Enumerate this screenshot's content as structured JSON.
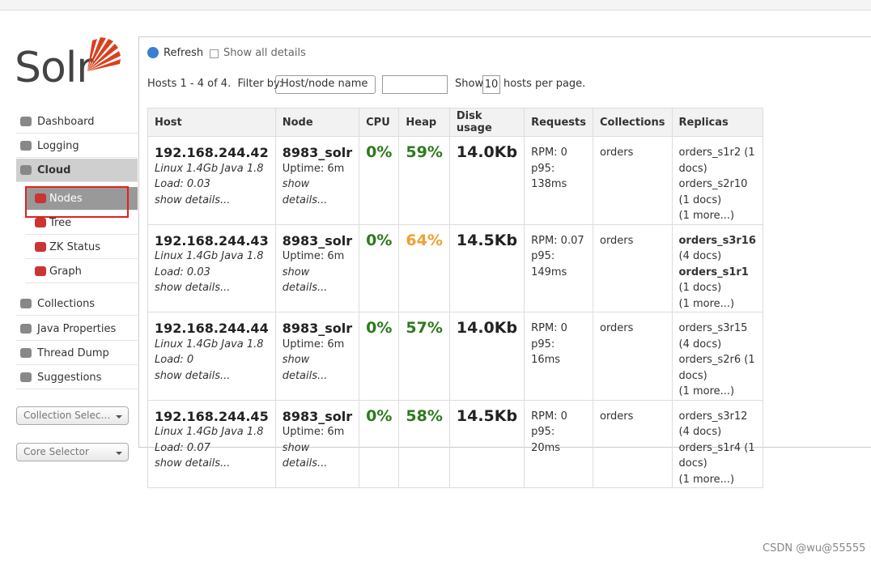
{
  "logo": "Solr",
  "nav": [
    {
      "label": "Dashboard"
    },
    {
      "label": "Logging"
    },
    {
      "label": "Cloud",
      "active": true
    },
    {
      "label": "Nodes",
      "sub": true,
      "selected": true
    },
    {
      "label": "Tree",
      "sub": true
    },
    {
      "label": "ZK Status",
      "sub": true
    },
    {
      "label": "Graph",
      "sub": true
    },
    {
      "label": "Collections"
    },
    {
      "label": "Java Properties"
    },
    {
      "label": "Thread Dump"
    },
    {
      "label": "Suggestions"
    }
  ],
  "selectors": [
    "Collection Selec…",
    "Core Selector"
  ],
  "toolbar": {
    "refresh": "Refresh",
    "show_all": "Show all details"
  },
  "filter": {
    "summary": "Hosts 1 - 4 of 4.",
    "filter_by": "Filter by:",
    "select": "Host/node name",
    "show": "Show",
    "per_page": "10",
    "suffix": "hosts per page."
  },
  "table": {
    "headers": [
      "Host",
      "Node",
      "CPU",
      "Heap",
      "Disk usage",
      "Requests",
      "Collections",
      "Replicas"
    ],
    "rows": [
      {
        "host": "192.168.244.42",
        "os": "Linux 1.4Gb Java 1.8",
        "load": "Load: 0.03",
        "host_details": "show details...",
        "node": "8983_solr",
        "uptime": "Uptime: 6m",
        "node_details": "show details...",
        "cpu": "0%",
        "heap": "59%",
        "heap_color": "#2d7a1f",
        "disk": "14.0Kb",
        "rpm": "RPM: 0",
        "p95": "p95: 138ms",
        "collections": "orders",
        "replicas": [
          {
            "name": "orders_s1r2",
            "docs": "(1 docs)",
            "bold": false
          },
          {
            "name": "orders_s2r10",
            "docs": "(1 docs)",
            "bold": false
          }
        ],
        "more": "(1 more...)"
      },
      {
        "host": "192.168.244.43",
        "os": "Linux 1.4Gb Java 1.8",
        "load": "Load: 0.03",
        "host_details": "show details...",
        "node": "8983_solr",
        "uptime": "Uptime: 6m",
        "node_details": "show details...",
        "cpu": "0%",
        "heap": "64%",
        "heap_color": "#f0a030",
        "disk": "14.5Kb",
        "rpm": "RPM: 0.07",
        "p95": "p95: 149ms",
        "collections": "orders",
        "replicas": [
          {
            "name": "orders_s3r16",
            "docs": "(4 docs)",
            "bold": true
          },
          {
            "name": "orders_s1r1",
            "docs": "(1 docs)",
            "bold": true
          }
        ],
        "more": "(1 more...)"
      },
      {
        "host": "192.168.244.44",
        "os": "Linux 1.4Gb Java 1.8",
        "load": "Load: 0",
        "host_details": "show details...",
        "node": "8983_solr",
        "uptime": "Uptime: 6m",
        "node_details": "show details...",
        "cpu": "0%",
        "heap": "57%",
        "heap_color": "#2d7a1f",
        "disk": "14.0Kb",
        "rpm": "RPM: 0",
        "p95": "p95: 16ms",
        "collections": "orders",
        "replicas": [
          {
            "name": "orders_s3r15",
            "docs": "(4 docs)",
            "bold": false
          },
          {
            "name": "orders_s2r6",
            "docs": "(1 docs)",
            "bold": false
          }
        ],
        "more": "(1 more...)"
      },
      {
        "host": "192.168.244.45",
        "os": "Linux 1.4Gb Java 1.8",
        "load": "Load: 0.07",
        "host_details": "show details...",
        "node": "8983_solr",
        "uptime": "Uptime: 6m",
        "node_details": "show details...",
        "cpu": "0%",
        "heap": "58%",
        "heap_color": "#2d7a1f",
        "disk": "14.5Kb",
        "rpm": "RPM: 0",
        "p95": "p95: 20ms",
        "collections": "orders",
        "replicas": [
          {
            "name": "orders_s3r12",
            "docs": "(4 docs)",
            "bold": false
          },
          {
            "name": "orders_s1r4",
            "docs": "(1 docs)",
            "bold": false
          }
        ],
        "more": "(1 more...)"
      }
    ]
  },
  "watermark": "CSDN @wu@55555"
}
